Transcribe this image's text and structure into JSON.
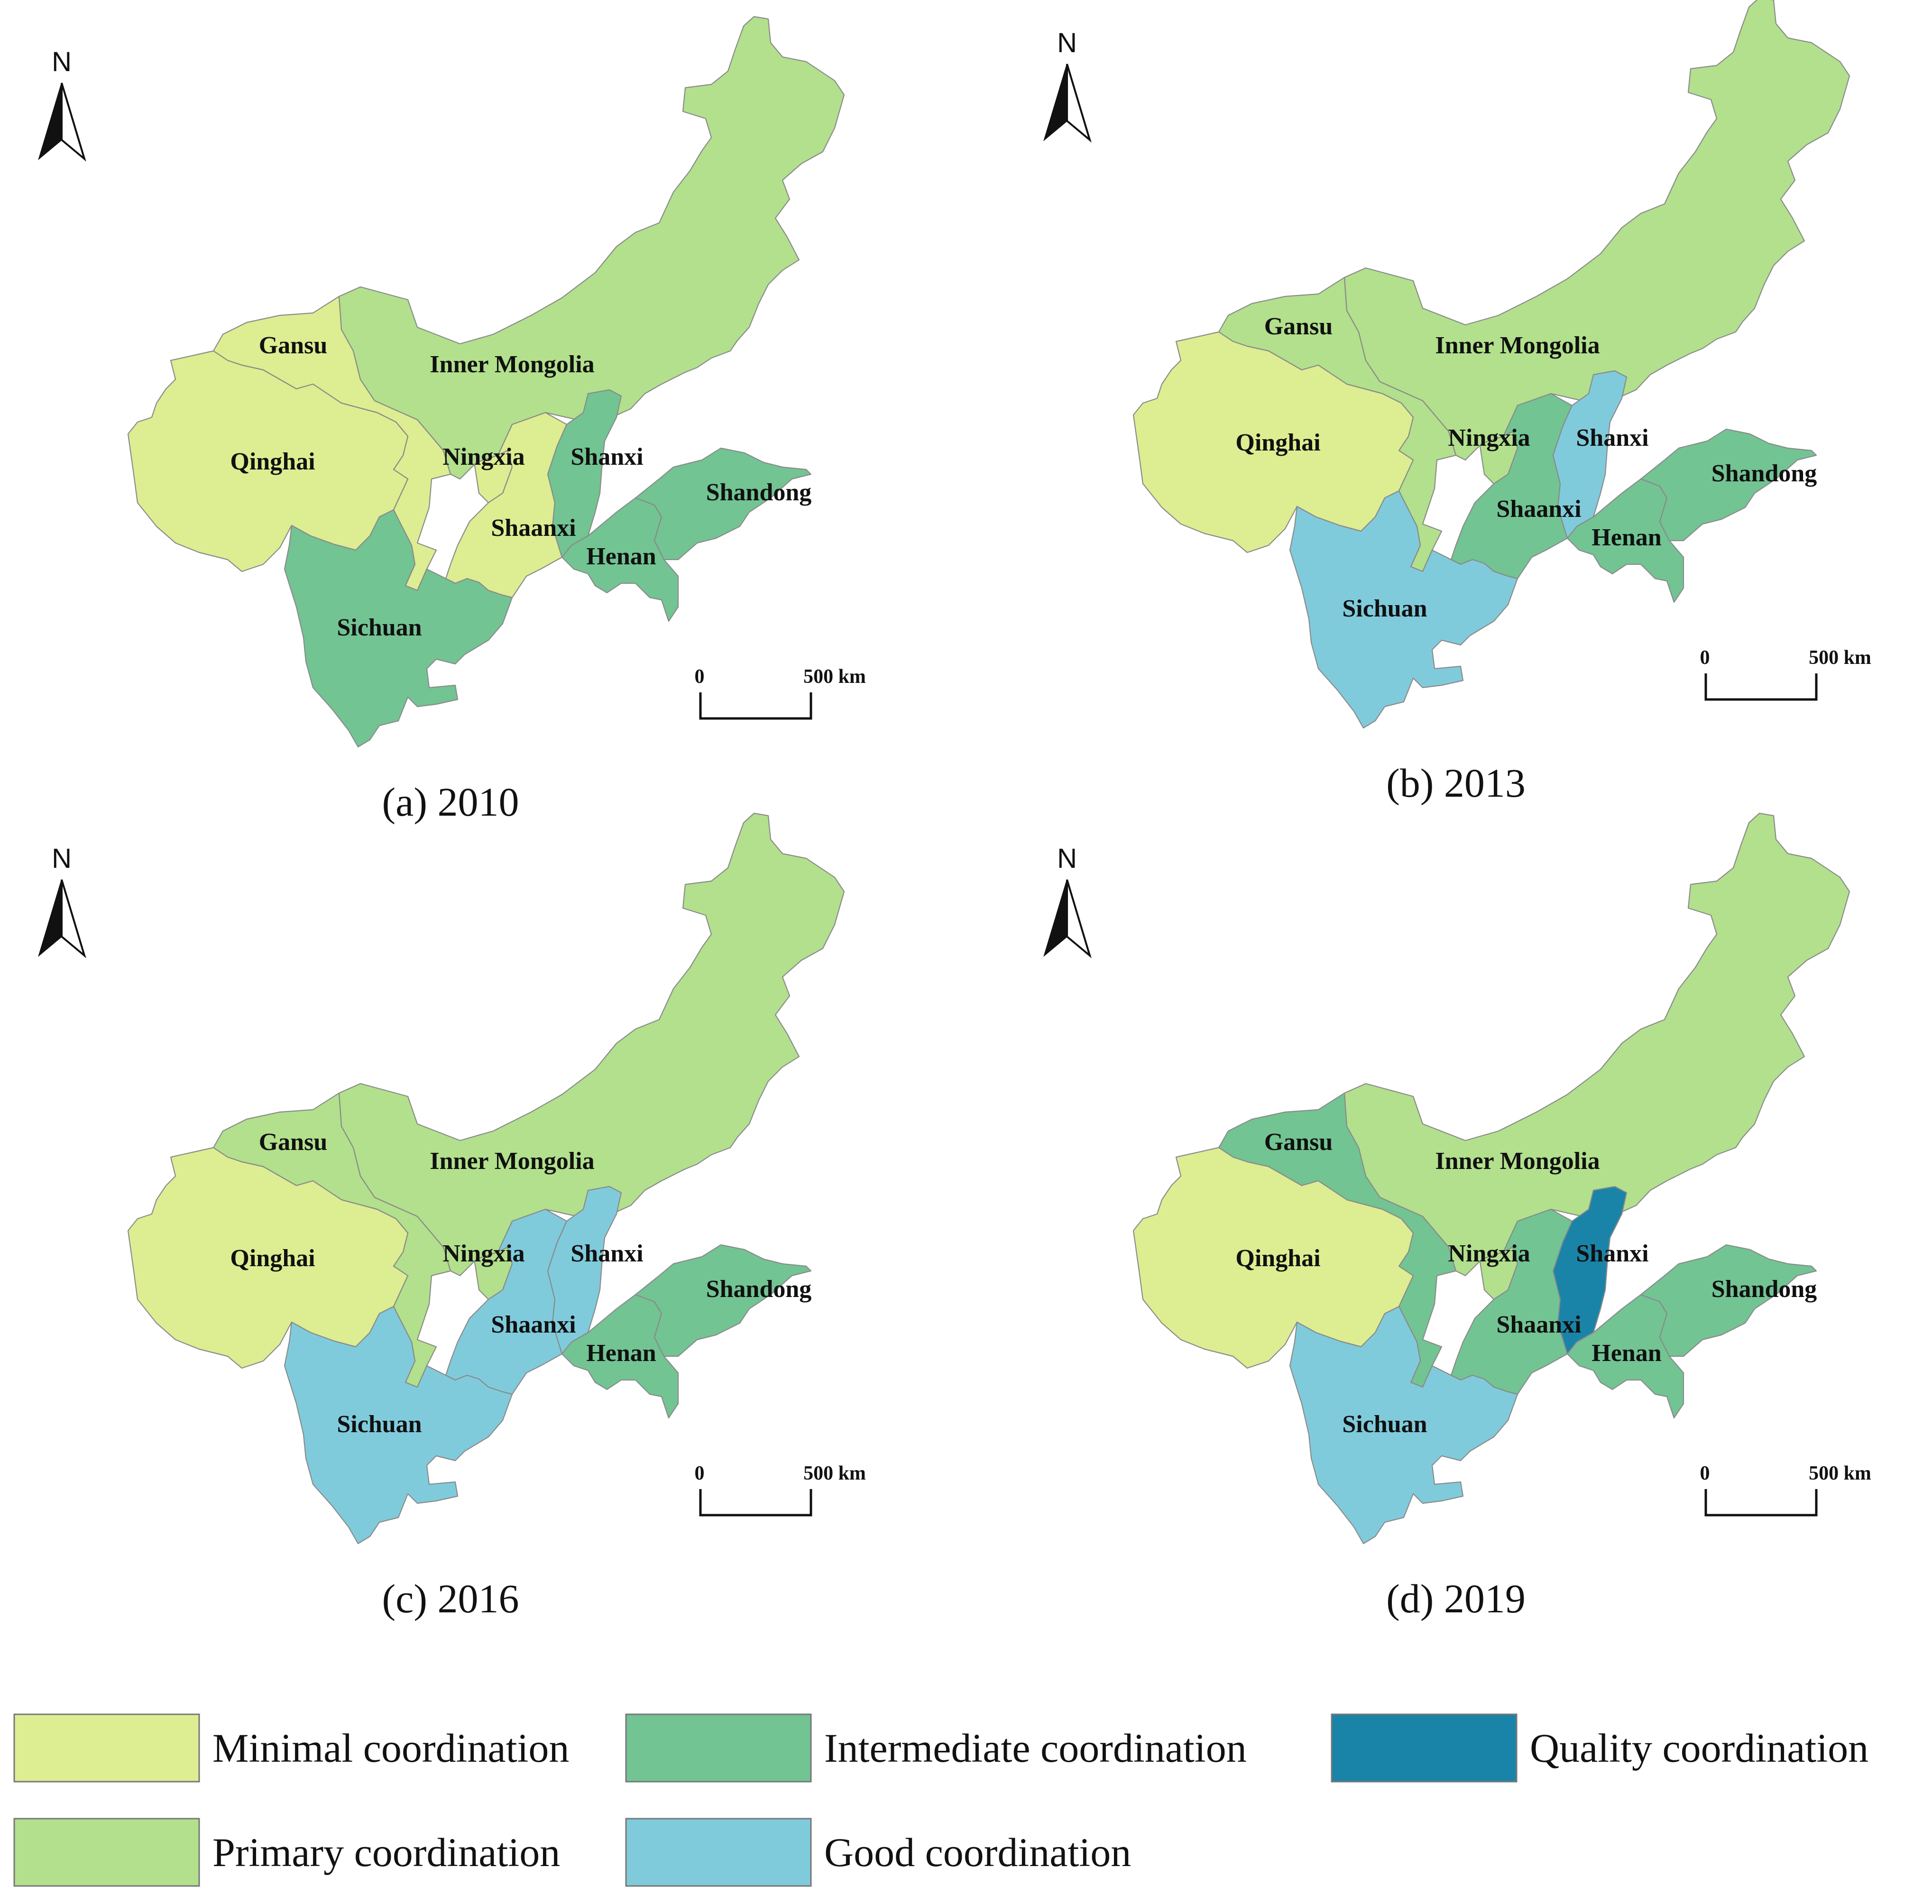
{
  "figure": {
    "legend": [
      {
        "key": "minimal",
        "label": "Minimal coordination",
        "color": "#dded91"
      },
      {
        "key": "primary",
        "label": "Primary coordination",
        "color": "#b2e08c"
      },
      {
        "key": "intermediate",
        "label": "Intermediate coordination",
        "color": "#72c493"
      },
      {
        "key": "good",
        "label": "Good coordination",
        "color": "#7fcbdc"
      },
      {
        "key": "quality",
        "label": "Quality coordination",
        "color": "#1a84a8"
      }
    ],
    "north_label": "N",
    "scale_zero": "0",
    "scale_max": "500 km",
    "panels": [
      {
        "id": "a",
        "caption": "(a) 2010",
        "provinces": [
          {
            "key": "gansu",
            "name": "Gansu",
            "level": "minimal"
          },
          {
            "key": "qinghai",
            "name": "Qinghai",
            "level": "minimal"
          },
          {
            "key": "ningxia",
            "name": "Ningxia",
            "level": "minimal"
          },
          {
            "key": "shaanxi",
            "name": "Shaanxi",
            "level": "minimal"
          },
          {
            "key": "innermongolia",
            "name": "Inner Mongolia",
            "level": "primary"
          },
          {
            "key": "sichuan",
            "name": "Sichuan",
            "level": "intermediate"
          },
          {
            "key": "shanxi",
            "name": "Shanxi",
            "level": "intermediate"
          },
          {
            "key": "henan",
            "name": "Henan",
            "level": "intermediate"
          },
          {
            "key": "shandong",
            "name": "Shandong",
            "level": "intermediate"
          }
        ]
      },
      {
        "id": "b",
        "caption": "(b) 2013",
        "provinces": [
          {
            "key": "gansu",
            "name": "Gansu",
            "level": "primary"
          },
          {
            "key": "qinghai",
            "name": "Qinghai",
            "level": "minimal"
          },
          {
            "key": "ningxia",
            "name": "Ningxia",
            "level": "primary"
          },
          {
            "key": "shaanxi",
            "name": "Shaanxi",
            "level": "intermediate"
          },
          {
            "key": "innermongolia",
            "name": "Inner Mongolia",
            "level": "primary"
          },
          {
            "key": "sichuan",
            "name": "Sichuan",
            "level": "good"
          },
          {
            "key": "shanxi",
            "name": "Shanxi",
            "level": "good"
          },
          {
            "key": "henan",
            "name": "Henan",
            "level": "intermediate"
          },
          {
            "key": "shandong",
            "name": "Shandong",
            "level": "intermediate"
          }
        ]
      },
      {
        "id": "c",
        "caption": "(c) 2016",
        "provinces": [
          {
            "key": "gansu",
            "name": "Gansu",
            "level": "primary"
          },
          {
            "key": "qinghai",
            "name": "Qinghai",
            "level": "minimal"
          },
          {
            "key": "ningxia",
            "name": "Ningxia",
            "level": "primary"
          },
          {
            "key": "shaanxi",
            "name": "Shaanxi",
            "level": "good"
          },
          {
            "key": "innermongolia",
            "name": "Inner Mongolia",
            "level": "primary"
          },
          {
            "key": "sichuan",
            "name": "Sichuan",
            "level": "good"
          },
          {
            "key": "shanxi",
            "name": "Shanxi",
            "level": "good"
          },
          {
            "key": "henan",
            "name": "Henan",
            "level": "intermediate"
          },
          {
            "key": "shandong",
            "name": "Shandong",
            "level": "intermediate"
          }
        ]
      },
      {
        "id": "d",
        "caption": "(d) 2019",
        "provinces": [
          {
            "key": "gansu",
            "name": "Gansu",
            "level": "intermediate"
          },
          {
            "key": "qinghai",
            "name": "Qinghai",
            "level": "minimal"
          },
          {
            "key": "ningxia",
            "name": "Ningxia",
            "level": "primary"
          },
          {
            "key": "shaanxi",
            "name": "Shaanxi",
            "level": "intermediate"
          },
          {
            "key": "innermongolia",
            "name": "Inner Mongolia",
            "level": "primary"
          },
          {
            "key": "sichuan",
            "name": "Sichuan",
            "level": "good"
          },
          {
            "key": "shanxi",
            "name": "Shanxi",
            "level": "quality"
          },
          {
            "key": "henan",
            "name": "Henan",
            "level": "intermediate"
          },
          {
            "key": "shandong",
            "name": "Shandong",
            "level": "intermediate"
          }
        ]
      }
    ]
  }
}
